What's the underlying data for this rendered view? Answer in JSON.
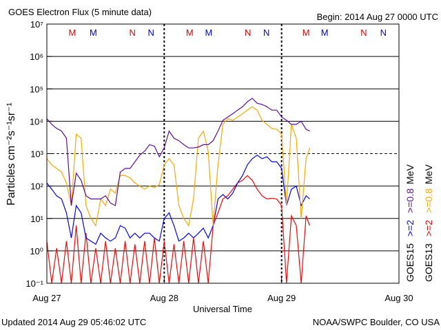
{
  "chart_data": {
    "type": "line",
    "title": "GOES Electron Flux (5 minute data)",
    "subtitle": "Begin: 2014 Aug 27 0000 UTC",
    "xlabel": "Universal Time",
    "ylabel": "Particles cm⁻²s⁻¹sr⁻¹",
    "footer_left": "Updated 2014 Aug 29 05:46:02 UTC",
    "footer_right": "NOAA/SWPC Boulder, CO USA",
    "log_scale": true,
    "grid": true,
    "threshold": 1000,
    "xlim": [
      0,
      72
    ],
    "xticks": [
      {
        "value": 0,
        "label": "Aug 27"
      },
      {
        "value": 24,
        "label": "Aug 28"
      },
      {
        "value": 48,
        "label": "Aug 29"
      },
      {
        "value": 72,
        "label": "Aug 30"
      }
    ],
    "ylim": [
      0.1,
      10000000
    ],
    "yticks": [
      {
        "value": 0.1,
        "label": "10⁻¹"
      },
      {
        "value": 1,
        "label": "10⁰"
      },
      {
        "value": 10,
        "label": "10¹"
      },
      {
        "value": 100,
        "label": "10²"
      },
      {
        "value": 1000,
        "label": "10³"
      },
      {
        "value": 10000,
        "label": "10⁴"
      },
      {
        "value": 100000,
        "label": "10⁵"
      },
      {
        "value": 1000000,
        "label": "10⁶"
      },
      {
        "value": 10000000,
        "label": "10⁷"
      }
    ],
    "markers": [
      {
        "label": "M",
        "x": 5.2,
        "color": "#e00000"
      },
      {
        "label": "M",
        "x": 9.5,
        "color": "#0000e0"
      },
      {
        "label": "N",
        "x": 17.5,
        "color": "#e00000"
      },
      {
        "label": "N",
        "x": 21.3,
        "color": "#0000e0"
      },
      {
        "label": "M",
        "x": 29.2,
        "color": "#e00000"
      },
      {
        "label": "M",
        "x": 33.1,
        "color": "#0000e0"
      },
      {
        "label": "N",
        "x": 41.1,
        "color": "#e00000"
      },
      {
        "label": "N",
        "x": 44.9,
        "color": "#0000e0"
      },
      {
        "label": "M",
        "x": 53.0,
        "color": "#e00000"
      },
      {
        "label": "M",
        "x": 56.8,
        "color": "#0000e0"
      },
      {
        "label": "N",
        "x": 64.8,
        "color": "#e00000"
      },
      {
        "label": "N",
        "x": 68.8,
        "color": "#0000e0"
      }
    ],
    "legend_columns": [
      {
        "label": "GOES15",
        "unit": "MeV"
      },
      {
        "label": "GOES13",
        "unit": "MeV"
      }
    ],
    "x": [
      0,
      1,
      2,
      3,
      4,
      5,
      6,
      7,
      8,
      9,
      10,
      11,
      12,
      13,
      14,
      15,
      16,
      17,
      18,
      19,
      20,
      21,
      22,
      23,
      24,
      25,
      26,
      27,
      28,
      29,
      30,
      31,
      32,
      33,
      34,
      35,
      36,
      37,
      38,
      39,
      40,
      41,
      42,
      43,
      44,
      45,
      46,
      47,
      48,
      49,
      50,
      51,
      52,
      53,
      53.75
    ],
    "series": [
      {
        "name": ">=0.8",
        "color": "#5c0a9e",
        "column": 0,
        "values": [
          12000,
          8000,
          6000,
          5000,
          3000,
          25,
          250,
          150,
          50,
          40,
          40,
          40,
          50,
          30,
          25,
          270,
          350,
          350,
          560,
          900,
          1200,
          1900,
          1700,
          800,
          1500,
          5000,
          3000,
          2500,
          1900,
          1500,
          1500,
          1600,
          1900,
          1900,
          2500,
          5000,
          10700,
          13500,
          17000,
          22000,
          28000,
          40000,
          51000,
          36000,
          33000,
          28000,
          22000,
          22000,
          13500,
          10700,
          8000,
          8000,
          10000,
          5600,
          5000
        ]
      },
      {
        "name": ">=0.8",
        "color": "#ffa500",
        "column": 1,
        "values": [
          700,
          450,
          350,
          270,
          125,
          25,
          4000,
          3000,
          25,
          10,
          6,
          40,
          25,
          80,
          60,
          210,
          210,
          180,
          125,
          100,
          80,
          100,
          90,
          110,
          450,
          700,
          450,
          25,
          10,
          6,
          40,
          3000,
          5000,
          1200,
          6,
          450,
          8000,
          12000,
          10700,
          13500,
          17000,
          22000,
          28000,
          22000,
          10700,
          8000,
          6000,
          5600,
          4000,
          25,
          8000,
          3000,
          10,
          700,
          1500
        ]
      },
      {
        "name": ">=2",
        "color": "#0000ff",
        "column": 0,
        "values": [
          125,
          80,
          50,
          40,
          15,
          2.5,
          25,
          15,
          2.5,
          2,
          1.6,
          3.5,
          2.5,
          2,
          2.5,
          6,
          5,
          2.5,
          3.5,
          2.5,
          3.5,
          3.5,
          2.5,
          2,
          10,
          15,
          6,
          2,
          2.5,
          3.5,
          2.5,
          3.5,
          5,
          2.5,
          6,
          40,
          55,
          40,
          60,
          125,
          210,
          450,
          700,
          900,
          700,
          800,
          560,
          560,
          350,
          25,
          80,
          100,
          25,
          50,
          40
        ]
      },
      {
        "name": ">=2",
        "color": "#ff0000",
        "column": 1,
        "values": [
          2,
          0.1,
          1.2,
          0.1,
          2,
          0.1,
          6,
          0.1,
          3.5,
          0.1,
          1.2,
          0.1,
          2,
          0.1,
          1.2,
          0.1,
          2,
          0.1,
          1.6,
          0.1,
          2,
          0.1,
          2.5,
          0.1,
          2,
          0.1,
          1.6,
          0.1,
          2,
          0.1,
          2.5,
          0.1,
          2,
          0.1,
          6,
          15,
          40,
          50,
          80,
          125,
          150,
          210,
          150,
          80,
          50,
          40,
          42,
          40,
          25,
          0.1,
          12,
          6,
          0.1,
          12,
          6
        ]
      }
    ]
  }
}
